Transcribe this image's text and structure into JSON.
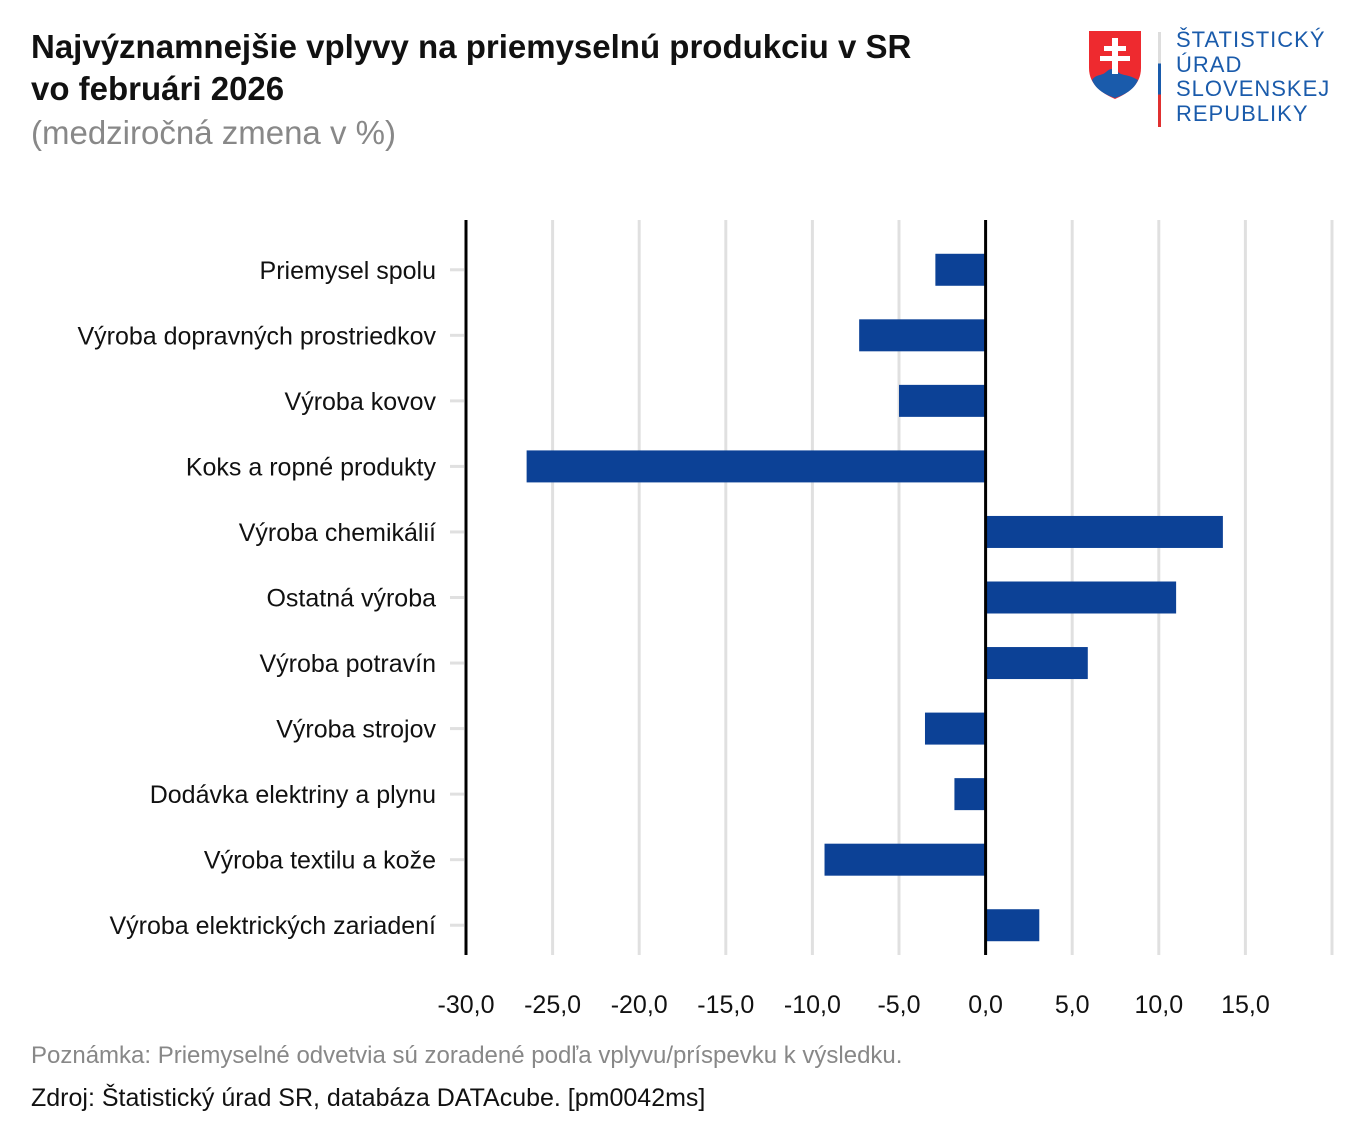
{
  "header": {
    "title_line1": "Najvýznamnejšie vplyvy na priemyselnú produkciu v SR",
    "title_line2": "vo februári 2026",
    "subtitle": "(medziročná zmena v %)"
  },
  "logo": {
    "lines": [
      "ŠTATISTICKÝ",
      "ÚRAD",
      "SLOVENSKEJ",
      "REPUBLIKY"
    ]
  },
  "footer": {
    "note": "Poznámka: Priemyselné odvetvia sú zoradené podľa vplyvu/príspevku k výsledku.",
    "source": "Zdroj: Štatistický úrad SR, databáza DATAcube. [pm0042ms]"
  },
  "colors": {
    "bar": "#0c4196",
    "grid": "#e0e0e0",
    "axis": "#000000"
  },
  "chart_data": {
    "type": "bar",
    "orientation": "horizontal",
    "title": "Najvýznamnejšie vplyvy na priemyselnú produkciu v SR vo februári 2026",
    "subtitle": "(medziročná zmena v %)",
    "categories": [
      "Priemysel spolu",
      "Výroba dopravných prostriedkov",
      "Výroba kovov",
      "Koks a ropné produkty",
      "Výroba chemikálií",
      "Ostatná výroba",
      "Výroba potravín",
      "Výroba strojov",
      "Dodávka elektriny a plynu",
      "Výroba textilu a kože",
      "Výroba elektrických zariadení"
    ],
    "values": [
      -2.9,
      -7.3,
      -5.0,
      -26.5,
      13.7,
      11.0,
      5.9,
      -3.5,
      -1.8,
      -9.3,
      3.1
    ],
    "xlim": [
      -30,
      20
    ],
    "xticks": [
      -30,
      -25,
      -20,
      -15,
      -10,
      -5,
      0,
      5,
      10,
      15
    ],
    "xtick_labels": [
      "-30,0",
      "-25,0",
      "-20,0",
      "-15,0",
      "-10,0",
      "-5,0",
      "0,0",
      "5,0",
      "10,0",
      "15,0"
    ],
    "grid": true
  }
}
